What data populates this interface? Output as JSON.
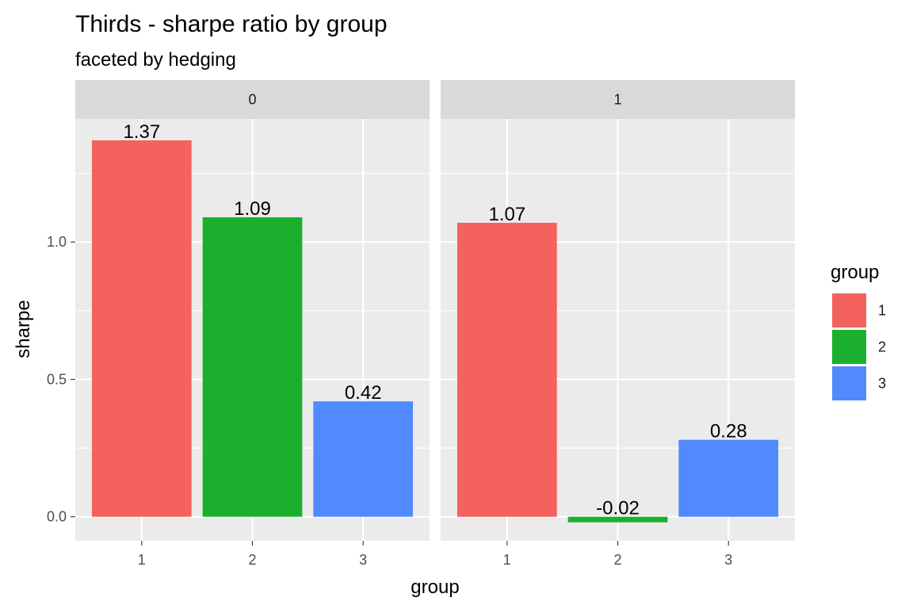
{
  "chart_data": {
    "type": "bar",
    "title": "Thirds - sharpe ratio by group",
    "subtitle": "faceted by hedging",
    "xlabel": "group",
    "ylabel": "sharpe",
    "categories": [
      "1",
      "2",
      "3"
    ],
    "ylim": [
      -0.08,
      1.43
    ],
    "y_ticks": [
      0.0,
      0.5,
      1.0
    ],
    "y_tick_labels": [
      "0.0",
      "0.5",
      "1.0"
    ],
    "grid": true,
    "facets": [
      {
        "strip": "0",
        "bars": [
          {
            "group": "1",
            "value": 1.37,
            "label": "1.37"
          },
          {
            "group": "2",
            "value": 1.09,
            "label": "1.09"
          },
          {
            "group": "3",
            "value": 0.42,
            "label": "0.42"
          }
        ]
      },
      {
        "strip": "1",
        "bars": [
          {
            "group": "1",
            "value": 1.07,
            "label": "1.07"
          },
          {
            "group": "2",
            "value": -0.02,
            "label": "-0.02"
          },
          {
            "group": "3",
            "value": 0.28,
            "label": "0.28"
          }
        ]
      }
    ],
    "legend": {
      "title": "group",
      "position": "right",
      "items": [
        {
          "label": "1",
          "color": "#F8766D"
        },
        {
          "label": "2",
          "color": "#1FAF2E"
        },
        {
          "label": "3",
          "color": "#619CFF"
        }
      ]
    },
    "colors": {
      "panel_background": "#EBEBEB",
      "strip_background": "#D9D9D9",
      "grid_major": "#FFFFFF",
      "group_1": "#F3625C",
      "group_2": "#1AB02E",
      "group_3": "#5189FF"
    }
  }
}
